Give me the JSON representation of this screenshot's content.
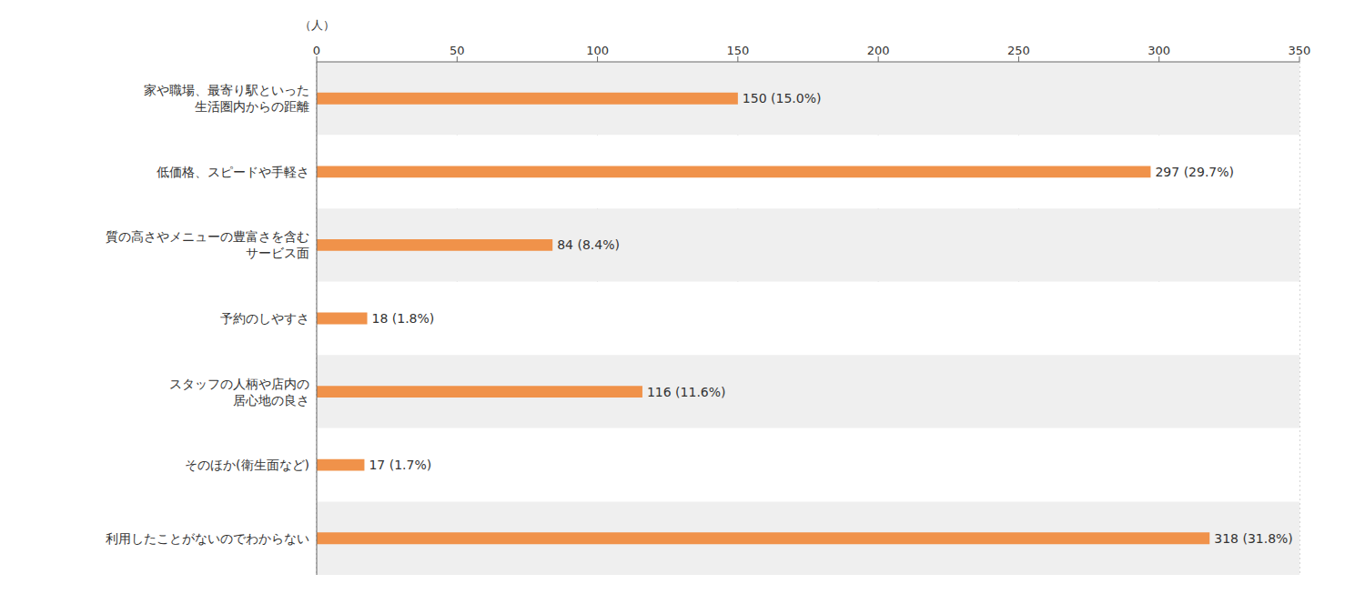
{
  "chart_data": {
    "type": "bar",
    "orientation": "horizontal",
    "xlabel": "（人）",
    "categories": [
      "家や職場、最寄り駅といった\n生活圏内からの距離",
      "低価格、スピードや手軽さ",
      "質の高さやメニューの豊富さを含む\nサービス面",
      "予約のしやすさ",
      "スタッフの人柄や店内の\n居心地の良さ",
      "そのほか(衛生面など)",
      "利用したことがないのでわからない"
    ],
    "values": [
      150,
      297,
      84,
      18,
      116,
      17,
      318
    ],
    "value_labels": [
      "150 (15.0%)",
      "297 (29.7%)",
      "84 (8.4%)",
      "18 (1.8%)",
      "116 (11.6%)",
      "17 (1.7%)",
      "318 (31.8%)"
    ],
    "data_labels": true,
    "color": "#F0924A",
    "xlim": [
      0,
      350
    ],
    "xticks": [
      0,
      50,
      100,
      150,
      200,
      250,
      300,
      350
    ],
    "grid": true
  }
}
